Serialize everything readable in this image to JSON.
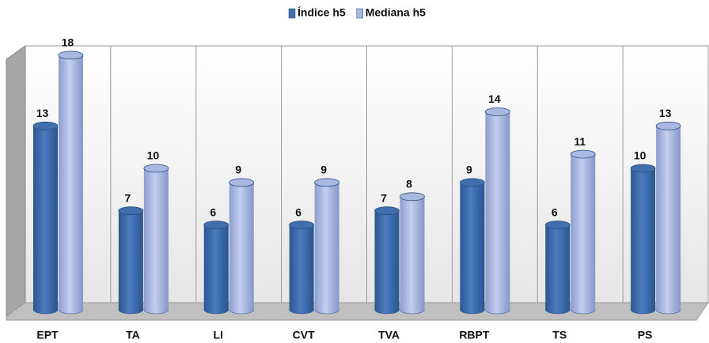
{
  "chart_data": {
    "type": "bar3d",
    "categories": [
      "EPT",
      "TA",
      "LI",
      "CVT",
      "TVA",
      "RBPT",
      "TS",
      "PS"
    ],
    "series": [
      {
        "name": "Índice h5",
        "color": "#3f6fad",
        "values": [
          13,
          7,
          6,
          6,
          7,
          9,
          6,
          10
        ]
      },
      {
        "name": "Mediana h5",
        "color": "#a9b8e0",
        "values": [
          18,
          10,
          9,
          9,
          8,
          14,
          11,
          13
        ]
      }
    ],
    "ylim": [
      0,
      20
    ],
    "legend": "top"
  }
}
